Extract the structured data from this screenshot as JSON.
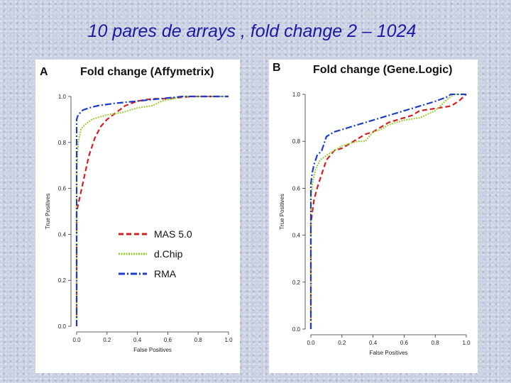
{
  "slide": {
    "title": "10 pares de arrays , fold change 2 – 1024"
  },
  "colors": {
    "mas5": "#d42020",
    "dchip": "#9acd32",
    "rma": "#1a3ec8"
  },
  "chart_data": [
    {
      "panel_letter": "A",
      "type": "line",
      "title": "Fold change (Affymetrix)",
      "xlabel": "False Positives",
      "ylabel": "True Positives",
      "xlim": [
        0,
        1
      ],
      "ylim": [
        0,
        1
      ],
      "xticks": [
        "0.0",
        "0.2",
        "0.4",
        "0.6",
        "0.8",
        "1.0"
      ],
      "yticks": [
        "0.0",
        "0.2",
        "0.4",
        "0.6",
        "0.8",
        "1.0"
      ],
      "legend_position": "center",
      "series": [
        {
          "name": "MAS 5.0",
          "color": "#d42020",
          "style": "dashed",
          "points": [
            [
              0,
              0
            ],
            [
              0,
              0.5
            ],
            [
              0.02,
              0.56
            ],
            [
              0.05,
              0.65
            ],
            [
              0.08,
              0.74
            ],
            [
              0.12,
              0.82
            ],
            [
              0.16,
              0.87
            ],
            [
              0.2,
              0.9
            ],
            [
              0.26,
              0.93
            ],
            [
              0.32,
              0.96
            ],
            [
              0.4,
              0.98
            ],
            [
              0.5,
              0.99
            ],
            [
              0.6,
              0.99
            ],
            [
              0.75,
              1.0
            ],
            [
              1.0,
              1.0
            ]
          ]
        },
        {
          "name": "d.Chip",
          "color": "#9acd32",
          "style": "dotted",
          "points": [
            [
              0,
              0
            ],
            [
              0,
              0.68
            ],
            [
              0.01,
              0.8
            ],
            [
              0.03,
              0.86
            ],
            [
              0.06,
              0.88
            ],
            [
              0.1,
              0.9
            ],
            [
              0.2,
              0.92
            ],
            [
              0.3,
              0.93
            ],
            [
              0.4,
              0.95
            ],
            [
              0.5,
              0.96
            ],
            [
              0.56,
              0.98
            ],
            [
              0.7,
              1.0
            ],
            [
              1.0,
              1.0
            ]
          ]
        },
        {
          "name": "RMA",
          "color": "#1a3ec8",
          "style": "dashdot",
          "points": [
            [
              0,
              0
            ],
            [
              0,
              0.9
            ],
            [
              0.01,
              0.92
            ],
            [
              0.04,
              0.94
            ],
            [
              0.08,
              0.95
            ],
            [
              0.14,
              0.96
            ],
            [
              0.25,
              0.97
            ],
            [
              0.4,
              0.98
            ],
            [
              0.55,
              0.99
            ],
            [
              0.7,
              1.0
            ],
            [
              1.0,
              1.0
            ]
          ]
        }
      ]
    },
    {
      "panel_letter": "B",
      "type": "line",
      "title": "Fold change (Gene.Logic)",
      "xlabel": "False Positives",
      "ylabel": "True Positives",
      "xlim": [
        0,
        1
      ],
      "ylim": [
        0,
        1
      ],
      "xticks": [
        "0.0",
        "0.2",
        "0.4",
        "0.6",
        "0.8",
        "1.0"
      ],
      "yticks": [
        "0.0",
        "0.2",
        "0.4",
        "0.6",
        "0.8",
        "1.0"
      ],
      "series": [
        {
          "name": "MAS 5.0",
          "color": "#d42020",
          "style": "dashed",
          "points": [
            [
              0,
              0
            ],
            [
              0,
              0.45
            ],
            [
              0.01,
              0.5
            ],
            [
              0.02,
              0.55
            ],
            [
              0.04,
              0.6
            ],
            [
              0.06,
              0.64
            ],
            [
              0.08,
              0.68
            ],
            [
              0.1,
              0.72
            ],
            [
              0.15,
              0.76
            ],
            [
              0.2,
              0.77
            ],
            [
              0.25,
              0.79
            ],
            [
              0.3,
              0.81
            ],
            [
              0.35,
              0.83
            ],
            [
              0.4,
              0.84
            ],
            [
              0.45,
              0.86
            ],
            [
              0.5,
              0.88
            ],
            [
              0.55,
              0.89
            ],
            [
              0.6,
              0.9
            ],
            [
              0.65,
              0.91
            ],
            [
              0.7,
              0.93
            ],
            [
              0.8,
              0.94
            ],
            [
              0.9,
              0.95
            ],
            [
              0.95,
              0.97
            ],
            [
              1.0,
              1.0
            ]
          ]
        },
        {
          "name": "d.Chip",
          "color": "#9acd32",
          "style": "dotted",
          "points": [
            [
              0,
              0
            ],
            [
              0,
              0.55
            ],
            [
              0.01,
              0.62
            ],
            [
              0.03,
              0.68
            ],
            [
              0.06,
              0.72
            ],
            [
              0.1,
              0.74
            ],
            [
              0.15,
              0.76
            ],
            [
              0.2,
              0.78
            ],
            [
              0.25,
              0.79
            ],
            [
              0.3,
              0.8
            ],
            [
              0.35,
              0.8
            ],
            [
              0.4,
              0.84
            ],
            [
              0.45,
              0.85
            ],
            [
              0.5,
              0.87
            ],
            [
              0.55,
              0.88
            ],
            [
              0.6,
              0.89
            ],
            [
              0.7,
              0.9
            ],
            [
              0.8,
              0.93
            ],
            [
              0.88,
              0.98
            ],
            [
              0.92,
              1.0
            ],
            [
              1.0,
              1.0
            ]
          ]
        },
        {
          "name": "RMA",
          "color": "#1a3ec8",
          "style": "dashdot",
          "points": [
            [
              0,
              0
            ],
            [
              0,
              0.62
            ],
            [
              0.01,
              0.67
            ],
            [
              0.02,
              0.7
            ],
            [
              0.04,
              0.74
            ],
            [
              0.07,
              0.76
            ],
            [
              0.1,
              0.82
            ],
            [
              0.15,
              0.84
            ],
            [
              0.2,
              0.85
            ],
            [
              0.25,
              0.86
            ],
            [
              0.3,
              0.87
            ],
            [
              0.35,
              0.88
            ],
            [
              0.4,
              0.89
            ],
            [
              0.45,
              0.9
            ],
            [
              0.5,
              0.91
            ],
            [
              0.55,
              0.92
            ],
            [
              0.6,
              0.93
            ],
            [
              0.7,
              0.95
            ],
            [
              0.8,
              0.97
            ],
            [
              0.88,
              0.99
            ],
            [
              0.9,
              1.0
            ],
            [
              1.0,
              1.0
            ]
          ]
        }
      ]
    }
  ]
}
